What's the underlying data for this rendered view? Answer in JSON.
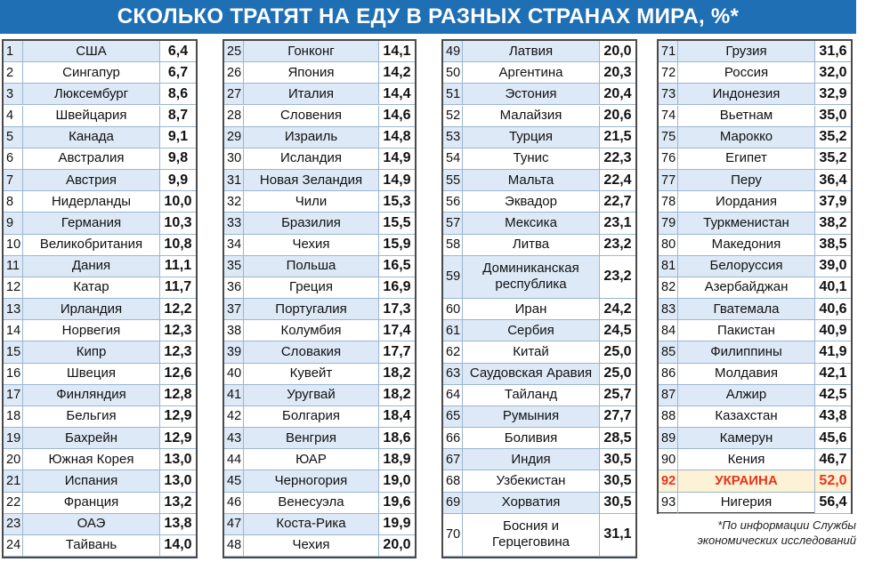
{
  "header": {
    "title": "СКОЛЬКО ТРАТЯТ НА ЕДУ В РАЗНЫХ СТРАНАХ МИРА, %*"
  },
  "footnote": "*По информации Службы экономических исследований",
  "colors": {
    "title_bg": "#1f6fb5",
    "row_alt": "#dde9f6",
    "highlight_text": "#e8331c",
    "highlight_bg": "#fdf2d6"
  },
  "chart_data": {
    "type": "table",
    "title": "СКОЛЬКО ТРАТЯТ НА ЕДУ В РАЗНЫХ СТРАНАХ МИРА, %*",
    "highlight_rank": "92",
    "rows": [
      {
        "rank": "1",
        "country": "США",
        "value": "6,4"
      },
      {
        "rank": "2",
        "country": "Сингапур",
        "value": "6,7"
      },
      {
        "rank": "3",
        "country": "Люксембург",
        "value": "8,6"
      },
      {
        "rank": "4",
        "country": "Швейцария",
        "value": "8,7"
      },
      {
        "rank": "5",
        "country": "Канада",
        "value": "9,1"
      },
      {
        "rank": "6",
        "country": "Австралия",
        "value": "9,8"
      },
      {
        "rank": "7",
        "country": "Австрия",
        "value": "9,9"
      },
      {
        "rank": "8",
        "country": "Нидерланды",
        "value": "10,0"
      },
      {
        "rank": "9",
        "country": "Германия",
        "value": "10,3"
      },
      {
        "rank": "10",
        "country": "Великобритания",
        "value": "10,8"
      },
      {
        "rank": "11",
        "country": "Дания",
        "value": "11,1"
      },
      {
        "rank": "12",
        "country": "Катар",
        "value": "11,7"
      },
      {
        "rank": "13",
        "country": "Ирландия",
        "value": "12,2"
      },
      {
        "rank": "14",
        "country": "Норвегия",
        "value": "12,3"
      },
      {
        "rank": "15",
        "country": "Кипр",
        "value": "12,3"
      },
      {
        "rank": "16",
        "country": "Швеция",
        "value": "12,6"
      },
      {
        "rank": "17",
        "country": "Финляндия",
        "value": "12,8"
      },
      {
        "rank": "18",
        "country": "Бельгия",
        "value": "12,9"
      },
      {
        "rank": "19",
        "country": "Бахрейн",
        "value": "12,9"
      },
      {
        "rank": "20",
        "country": "Южная Корея",
        "value": "13,0"
      },
      {
        "rank": "21",
        "country": "Испания",
        "value": "13,0"
      },
      {
        "rank": "22",
        "country": "Франция",
        "value": "13,2"
      },
      {
        "rank": "23",
        "country": "ОАЭ",
        "value": "13,8"
      },
      {
        "rank": "24",
        "country": "Тайвань",
        "value": "14,0"
      },
      {
        "rank": "25",
        "country": "Гонконг",
        "value": "14,1"
      },
      {
        "rank": "26",
        "country": "Япония",
        "value": "14,2"
      },
      {
        "rank": "27",
        "country": "Италия",
        "value": "14,4"
      },
      {
        "rank": "28",
        "country": "Словения",
        "value": "14,6"
      },
      {
        "rank": "29",
        "country": "Израиль",
        "value": "14,8"
      },
      {
        "rank": "30",
        "country": "Исландия",
        "value": "14,9"
      },
      {
        "rank": "31",
        "country": "Новая Зеландия",
        "value": "14,9"
      },
      {
        "rank": "32",
        "country": "Чили",
        "value": "15,3"
      },
      {
        "rank": "33",
        "country": "Бразилия",
        "value": "15,5"
      },
      {
        "rank": "34",
        "country": "Чехия",
        "value": "15,9"
      },
      {
        "rank": "35",
        "country": "Польша",
        "value": "16,5"
      },
      {
        "rank": "36",
        "country": "Греция",
        "value": "16,9"
      },
      {
        "rank": "37",
        "country": "Португалия",
        "value": "17,3"
      },
      {
        "rank": "38",
        "country": "Колумбия",
        "value": "17,4"
      },
      {
        "rank": "39",
        "country": "Словакия",
        "value": "17,7"
      },
      {
        "rank": "40",
        "country": "Кувейт",
        "value": "18,2"
      },
      {
        "rank": "41",
        "country": "Уругвай",
        "value": "18,2"
      },
      {
        "rank": "42",
        "country": "Болгария",
        "value": "18,4"
      },
      {
        "rank": "43",
        "country": "Венгрия",
        "value": "18,6"
      },
      {
        "rank": "44",
        "country": "ЮАР",
        "value": "18,9"
      },
      {
        "rank": "45",
        "country": "Черногория",
        "value": "19,0"
      },
      {
        "rank": "46",
        "country": "Венесуэла",
        "value": "19,6"
      },
      {
        "rank": "47",
        "country": "Коста-Рика",
        "value": "19,9"
      },
      {
        "rank": "48",
        "country": "Чехия",
        "value": "20,0"
      },
      {
        "rank": "49",
        "country": "Латвия",
        "value": "20,0"
      },
      {
        "rank": "50",
        "country": "Аргентина",
        "value": "20,3"
      },
      {
        "rank": "51",
        "country": "Эстония",
        "value": "20,4"
      },
      {
        "rank": "52",
        "country": "Малайзия",
        "value": "20,6"
      },
      {
        "rank": "53",
        "country": "Турция",
        "value": "21,5"
      },
      {
        "rank": "54",
        "country": "Тунис",
        "value": "22,3"
      },
      {
        "rank": "55",
        "country": "Мальта",
        "value": "22,4"
      },
      {
        "rank": "56",
        "country": "Эквадор",
        "value": "22,7"
      },
      {
        "rank": "57",
        "country": "Мексика",
        "value": "23,1"
      },
      {
        "rank": "58",
        "country": "Литва",
        "value": "23,2"
      },
      {
        "rank": "59",
        "country": "Доминиканская республика",
        "value": "23,2"
      },
      {
        "rank": "60",
        "country": "Иран",
        "value": "24,2"
      },
      {
        "rank": "61",
        "country": "Сербия",
        "value": "24,5"
      },
      {
        "rank": "62",
        "country": "Китай",
        "value": "25,0"
      },
      {
        "rank": "63",
        "country": "Саудовская Аравия",
        "value": "25,0"
      },
      {
        "rank": "64",
        "country": "Тайланд",
        "value": "25,7"
      },
      {
        "rank": "65",
        "country": "Румыния",
        "value": "27,7"
      },
      {
        "rank": "66",
        "country": "Боливия",
        "value": "28,5"
      },
      {
        "rank": "67",
        "country": "Индия",
        "value": "30,5"
      },
      {
        "rank": "68",
        "country": "Узбекистан",
        "value": "30,5"
      },
      {
        "rank": "69",
        "country": "Хорватия",
        "value": "30,5"
      },
      {
        "rank": "70",
        "country": "Босния и Герцеговина",
        "value": "31,1"
      },
      {
        "rank": "71",
        "country": "Грузия",
        "value": "31,6"
      },
      {
        "rank": "72",
        "country": "Россия",
        "value": "32,0"
      },
      {
        "rank": "73",
        "country": "Индонезия",
        "value": "32,9"
      },
      {
        "rank": "74",
        "country": "Вьетнам",
        "value": "35,0"
      },
      {
        "rank": "75",
        "country": "Марокко",
        "value": "35,2"
      },
      {
        "rank": "76",
        "country": "Египет",
        "value": "35,2"
      },
      {
        "rank": "77",
        "country": "Перу",
        "value": "36,4"
      },
      {
        "rank": "78",
        "country": "Иордания",
        "value": "37,9"
      },
      {
        "rank": "79",
        "country": "Туркменистан",
        "value": "38,2"
      },
      {
        "rank": "80",
        "country": "Македония",
        "value": "38,5"
      },
      {
        "rank": "81",
        "country": "Белоруссия",
        "value": "39,0"
      },
      {
        "rank": "82",
        "country": "Азербайджан",
        "value": "40,1"
      },
      {
        "rank": "83",
        "country": "Гватемала",
        "value": "40,6"
      },
      {
        "rank": "84",
        "country": "Пакистан",
        "value": "40,9"
      },
      {
        "rank": "85",
        "country": "Филиппины",
        "value": "41,9"
      },
      {
        "rank": "86",
        "country": "Молдавия",
        "value": "42,1"
      },
      {
        "rank": "87",
        "country": "Алжир",
        "value": "42,5"
      },
      {
        "rank": "88",
        "country": "Казахстан",
        "value": "43,8"
      },
      {
        "rank": "89",
        "country": "Камерун",
        "value": "45,6"
      },
      {
        "rank": "90",
        "country": "Кения",
        "value": "46,7"
      },
      {
        "rank": "92",
        "country": "УКРАИНА",
        "value": "52,0"
      },
      {
        "rank": "93",
        "country": "Нигерия",
        "value": "56,4"
      }
    ]
  }
}
